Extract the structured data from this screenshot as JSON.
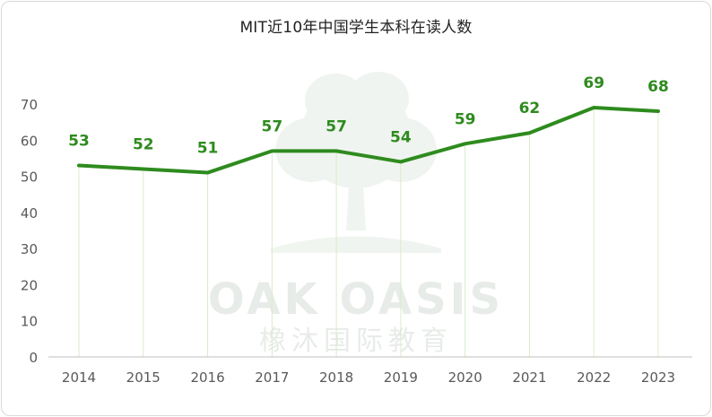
{
  "chart_data": {
    "type": "line",
    "title": "MIT近10年中国学生本科在读人数",
    "categories": [
      "2014",
      "2015",
      "2016",
      "2017",
      "2018",
      "2019",
      "2020",
      "2021",
      "2022",
      "2023"
    ],
    "series": [
      {
        "values": [
          53,
          52,
          51,
          57,
          57,
          54,
          59,
          62,
          69,
          68
        ]
      }
    ],
    "ylim": [
      0,
      70
    ],
    "yticks": [
      "0",
      "10",
      "20",
      "30",
      "40",
      "50",
      "60",
      "70"
    ],
    "grid": "vertical drop lines from each point",
    "legend": "none",
    "data_labels": true
  },
  "watermark": {
    "line1": "OAK OASIS",
    "line2": "橡沐国际教育"
  },
  "colors": {
    "line": "#2e8b1e",
    "label": "#2e8b1e",
    "dropline": "#d8ecc8",
    "axis_text": "#595959",
    "baseline": "#bfbfbf",
    "watermark": "#e6eee6"
  }
}
